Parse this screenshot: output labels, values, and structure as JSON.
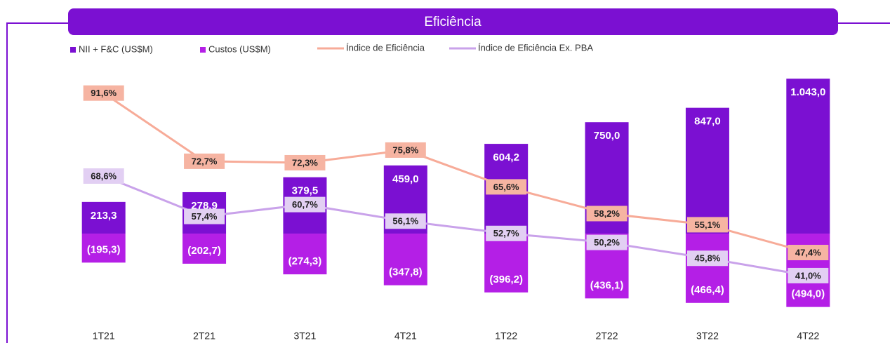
{
  "chart_data": {
    "type": "bar",
    "title": "Eficiência",
    "categories": [
      "1T21",
      "2T21",
      "3T21",
      "4T21",
      "1T22",
      "2T22",
      "3T22",
      "4T22"
    ],
    "ylim": [
      -550,
      1150
    ],
    "y2lim": [
      30,
      100
    ],
    "series": [
      {
        "name": "NII + F&C (US$M)",
        "type": "bar",
        "color": "#7b10d2",
        "values": [
          213.3,
          278.9,
          379.5,
          459.0,
          604.2,
          750.0,
          847.0,
          1043.0
        ],
        "value_labels": [
          "213,3",
          "278,9",
          "379,5",
          "459,0",
          "604,2",
          "750,0",
          "847,0",
          "1.043,0"
        ]
      },
      {
        "name": "Custos (US$M)",
        "type": "bar",
        "color": "#b41fe6",
        "values": [
          -195.3,
          -202.7,
          -274.3,
          -347.8,
          -396.2,
          -436.1,
          -466.4,
          -494.0
        ],
        "value_labels": [
          "(195,3)",
          "(202,7)",
          "(274,3)",
          "(347,8)",
          "(396,2)",
          "(436,1)",
          "(466,4)",
          "(494,0)"
        ]
      },
      {
        "name": "Índice de Eficiência",
        "type": "line",
        "axis": "y2",
        "color": "#f7ab98",
        "label_color": "#f6b4a2",
        "values": [
          91.6,
          72.7,
          72.3,
          75.8,
          65.6,
          58.2,
          55.1,
          47.4
        ],
        "value_labels": [
          "91,6%",
          "72,7%",
          "72,3%",
          "75,8%",
          "65,6%",
          "58,2%",
          "55,1%",
          "47,4%"
        ]
      },
      {
        "name": "Índice de Eficiência Ex. PBA",
        "type": "line",
        "axis": "y2",
        "color": "#c9a2ea",
        "label_color": "#e2cff3",
        "values": [
          68.6,
          57.4,
          60.7,
          56.1,
          52.7,
          50.2,
          45.8,
          41.0
        ],
        "value_labels": [
          "68,6%",
          "57,4%",
          "60,7%",
          "56,1%",
          "52,7%",
          "50,2%",
          "45,8%",
          "41,0%"
        ]
      }
    ]
  }
}
